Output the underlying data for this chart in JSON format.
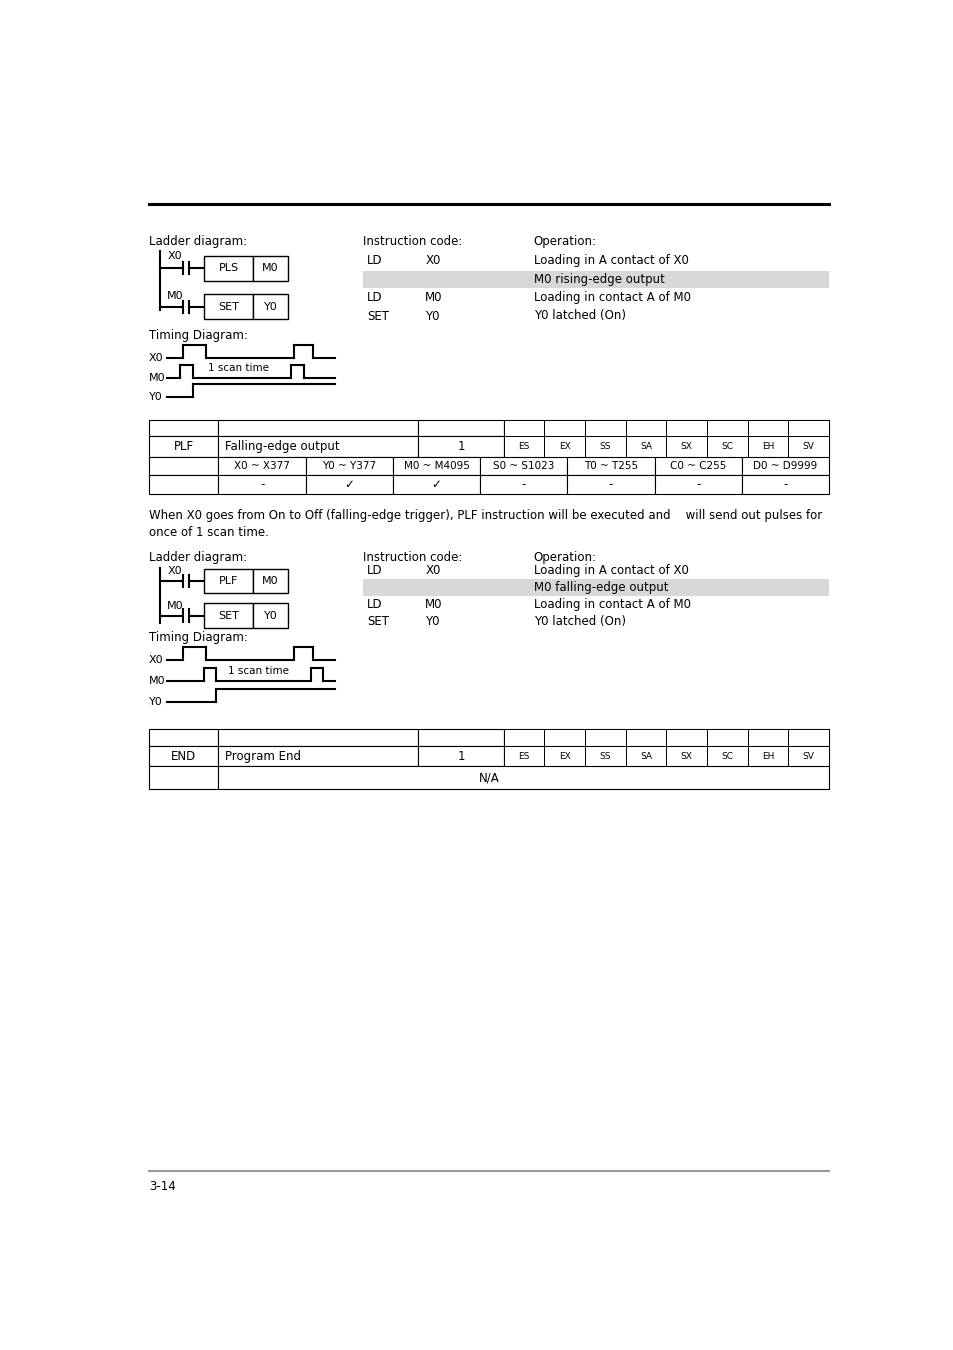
{
  "page_number": "3-14",
  "bg_color": "#ffffff",
  "highlight_color": "#d8d8d8",
  "section1_rows": [
    {
      "code": "LD",
      "arg": "X0",
      "desc": "Loading in A contact of X0",
      "highlight": false
    },
    {
      "code": "",
      "arg": "",
      "desc": "M0 rising-edge output",
      "highlight": true
    },
    {
      "code": "LD",
      "arg": "M0",
      "desc": "Loading in contact A of M0",
      "highlight": false
    },
    {
      "code": "SET",
      "arg": "Y0",
      "desc": "Y0 latched (On)",
      "highlight": false
    }
  ],
  "section2_rows": [
    {
      "code": "LD",
      "arg": "X0",
      "desc": "Loading in A contact of X0",
      "highlight": false
    },
    {
      "code": "",
      "arg": "",
      "desc": "M0 falling-edge output",
      "highlight": true
    },
    {
      "code": "LD",
      "arg": "M0",
      "desc": "Loading in contact A of M0",
      "highlight": false
    },
    {
      "code": "SET",
      "arg": "Y0",
      "desc": "Y0 latched (On)",
      "highlight": false
    }
  ],
  "plf_chips": [
    "ES",
    "EX",
    "SS",
    "SA",
    "SX",
    "SC",
    "EH",
    "SV"
  ],
  "end_chips": [
    "ES",
    "EX",
    "SS",
    "SA",
    "SX",
    "SC",
    "EH",
    "SV"
  ],
  "plf_operand_headers": [
    "X0 ~ X377",
    "Y0 ~ Y377",
    "M0 ~ M4095",
    "S0 ~ S1023",
    "T0 ~ T255",
    "C0 ~ C255",
    "D0 ~ D9999"
  ],
  "plf_operand_values": [
    "-",
    "✓",
    "✓",
    "-",
    "-",
    "-",
    "-"
  ],
  "plf_description_line1": "When X0 goes from On to Off (falling-edge trigger), PLF instruction will be executed and    will send out pulses for",
  "plf_description_line2": "once of 1 scan time."
}
